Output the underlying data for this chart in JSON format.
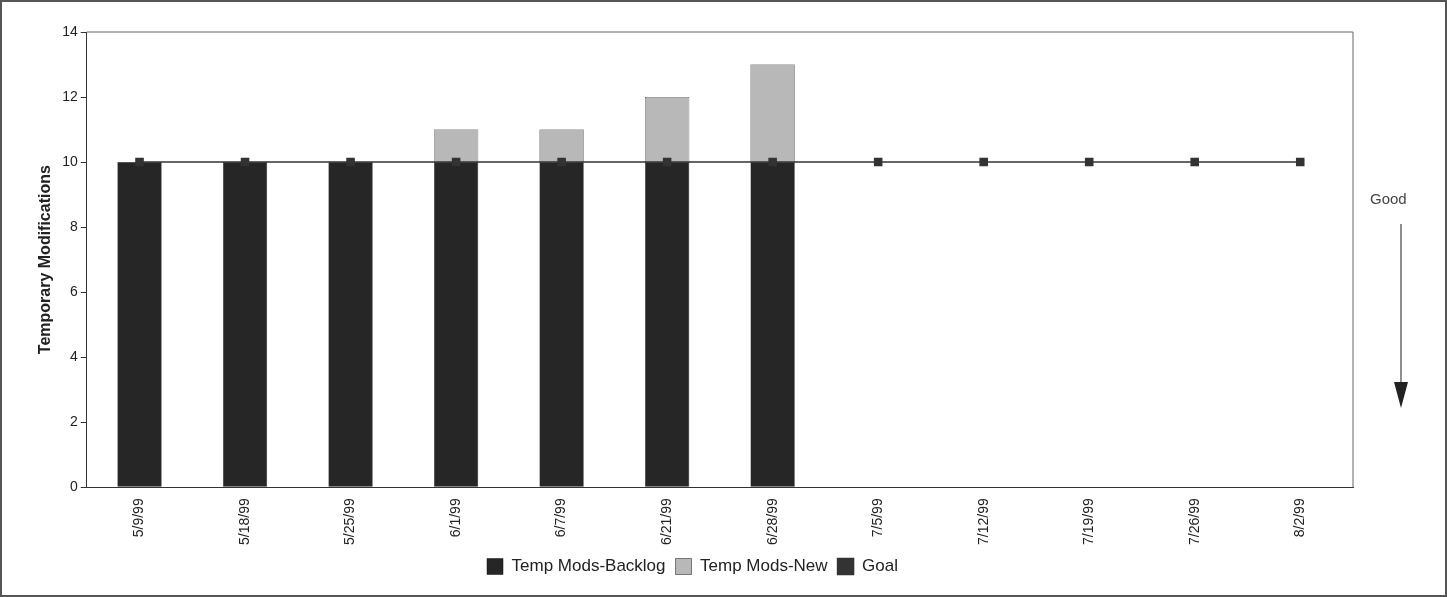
{
  "chart_data": {
    "type": "bar",
    "stacked": true,
    "ylabel": "Temporary Modifications",
    "categories": [
      "5/9/99",
      "5/18/99",
      "5/25/99",
      "6/1/99",
      "6/7/99",
      "6/21/99",
      "6/28/99",
      "7/5/99",
      "7/12/99",
      "7/19/99",
      "7/26/99",
      "8/2/99"
    ],
    "series": [
      {
        "name": "Temp Mods-Backlog",
        "color": "#262626",
        "values": [
          10,
          10,
          10,
          10,
          10,
          10,
          10,
          null,
          null,
          null,
          null,
          null
        ]
      },
      {
        "name": "Temp Mods-New",
        "color": "#b8b8b8",
        "values": [
          null,
          null,
          null,
          1,
          1,
          2,
          3,
          null,
          null,
          null,
          null,
          null
        ]
      },
      {
        "name": "Goal",
        "type": "line",
        "color": "#333333",
        "marker": "square",
        "values": [
          10,
          10,
          10,
          10,
          10,
          10,
          10,
          10,
          10,
          10,
          10,
          10
        ]
      }
    ],
    "ylim": [
      0,
      14
    ],
    "yticks": [
      0,
      2,
      4,
      6,
      8,
      10,
      12,
      14
    ],
    "grid": false,
    "legend": "bottom",
    "annotations": [
      "Good"
    ]
  }
}
